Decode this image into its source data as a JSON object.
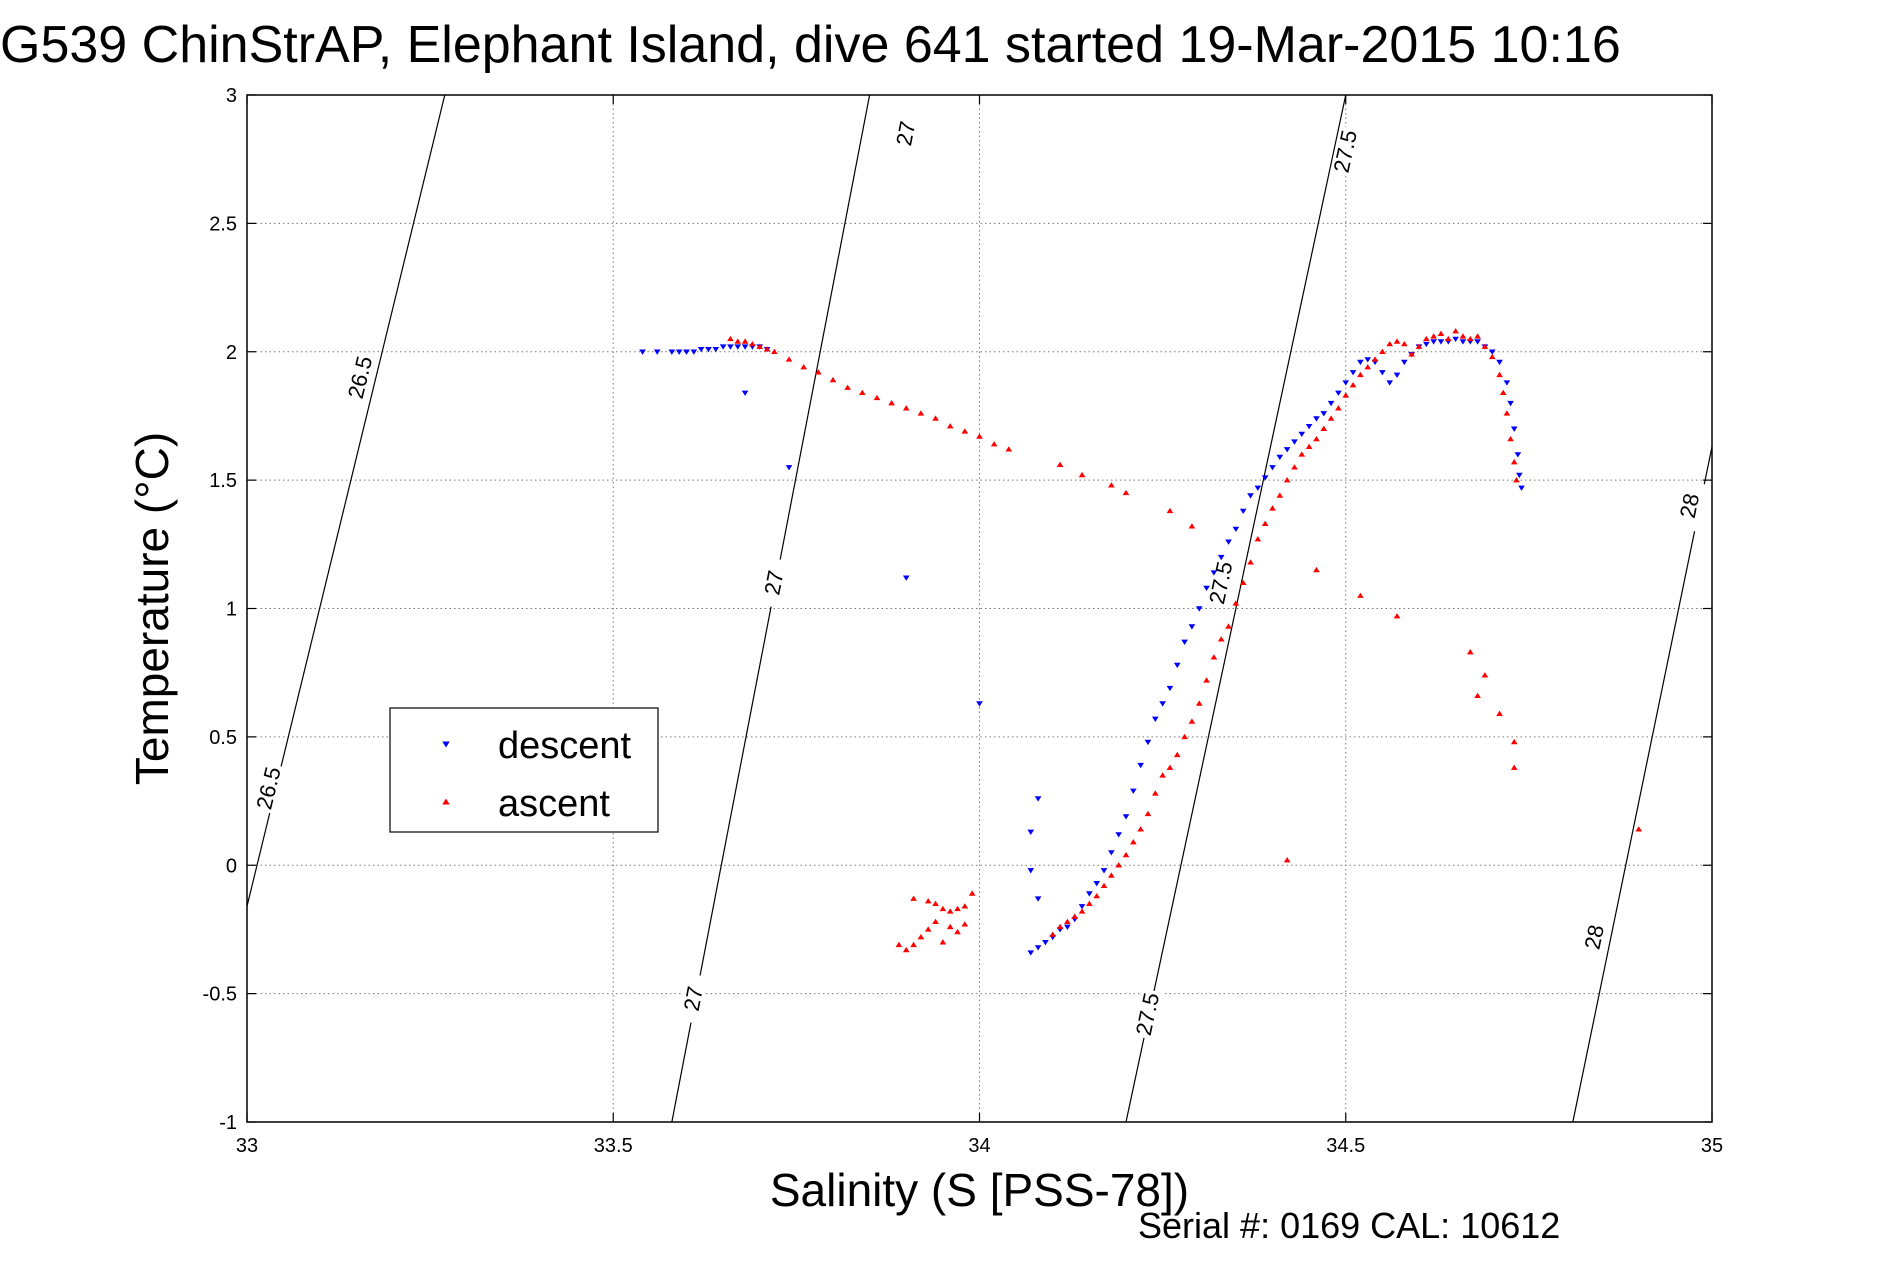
{
  "chart_data": {
    "type": "scatter",
    "title": "G539 ChinStrAP, Elephant Island, dive 641 started 19-Mar-2015 10:16",
    "xlabel": "Salinity (S [PSS-78])",
    "ylabel": "Temperature (°C)",
    "xlim": [
      33,
      35
    ],
    "ylim": [
      -1,
      3
    ],
    "xticks": [
      33,
      33.5,
      34,
      34.5,
      35
    ],
    "yticks": [
      -1,
      -0.5,
      0,
      0.5,
      1,
      1.5,
      2,
      2.5,
      3
    ],
    "xtick_labels": [
      "33",
      "33.5",
      "34",
      "34.5",
      "35"
    ],
    "ytick_labels": [
      "-1",
      "-0.5",
      "0",
      "0.5",
      "1",
      "1.5",
      "2",
      "2.5",
      "3"
    ],
    "grid": true,
    "legend_position": "center-left",
    "footer": "Serial #: 0169 CAL: 10612",
    "isopycnals": [
      {
        "label": "26.5",
        "points": [
          [
            33.0,
            -0.16
          ],
          [
            33.27,
            3.0
          ]
        ],
        "label_at": [
          [
            33.155,
            1.9
          ],
          [
            33.03,
            0.3
          ]
        ]
      },
      {
        "label": "27",
        "points": [
          [
            33.58,
            -1.0
          ],
          [
            33.85,
            3.0
          ]
        ],
        "label_at": [
          [
            33.61,
            -0.52
          ],
          [
            33.72,
            1.1
          ],
          [
            33.9,
            2.85
          ]
        ]
      },
      {
        "label": "27.5",
        "points": [
          [
            34.2,
            -1.0
          ],
          [
            34.5,
            3.0
          ]
        ],
        "label_at": [
          [
            34.23,
            -0.58
          ],
          [
            34.33,
            1.1
          ],
          [
            34.5,
            2.78
          ]
        ]
      },
      {
        "label": "28",
        "points": [
          [
            34.81,
            -1.0
          ],
          [
            35.0,
            1.63
          ]
        ],
        "label_at": [
          [
            34.84,
            -0.28
          ],
          [
            34.97,
            1.4
          ]
        ]
      }
    ],
    "series": [
      {
        "name": "descent",
        "color": "#0000ff",
        "marker": "triangle-down",
        "points": [
          [
            33.54,
            2.0
          ],
          [
            33.56,
            2.0
          ],
          [
            33.58,
            2.0
          ],
          [
            33.59,
            2.0
          ],
          [
            33.6,
            2.0
          ],
          [
            33.61,
            2.0
          ],
          [
            33.62,
            2.01
          ],
          [
            33.63,
            2.01
          ],
          [
            33.64,
            2.01
          ],
          [
            33.65,
            2.02
          ],
          [
            33.66,
            2.02
          ],
          [
            33.67,
            2.02
          ],
          [
            33.68,
            2.02
          ],
          [
            33.69,
            2.02
          ],
          [
            33.7,
            2.02
          ],
          [
            33.71,
            2.01
          ],
          [
            33.68,
            1.84
          ],
          [
            33.74,
            1.55
          ],
          [
            33.9,
            1.12
          ],
          [
            34.0,
            0.63
          ],
          [
            34.08,
            0.26
          ],
          [
            34.07,
            0.13
          ],
          [
            34.07,
            -0.02
          ],
          [
            34.08,
            -0.13
          ],
          [
            34.07,
            -0.34
          ],
          [
            34.08,
            -0.32
          ],
          [
            34.09,
            -0.3
          ],
          [
            34.1,
            -0.28
          ],
          [
            34.11,
            -0.25
          ],
          [
            34.12,
            -0.24
          ],
          [
            34.13,
            -0.21
          ],
          [
            34.14,
            -0.16
          ],
          [
            34.15,
            -0.11
          ],
          [
            34.16,
            -0.07
          ],
          [
            34.17,
            -0.02
          ],
          [
            34.18,
            0.05
          ],
          [
            34.19,
            0.12
          ],
          [
            34.2,
            0.19
          ],
          [
            34.21,
            0.29
          ],
          [
            34.22,
            0.39
          ],
          [
            34.23,
            0.48
          ],
          [
            34.24,
            0.57
          ],
          [
            34.25,
            0.63
          ],
          [
            34.26,
            0.69
          ],
          [
            34.27,
            0.78
          ],
          [
            34.28,
            0.87
          ],
          [
            34.29,
            0.93
          ],
          [
            34.3,
            1.0
          ],
          [
            34.31,
            1.08
          ],
          [
            34.32,
            1.14
          ],
          [
            34.33,
            1.2
          ],
          [
            34.34,
            1.26
          ],
          [
            34.35,
            1.31
          ],
          [
            34.36,
            1.38
          ],
          [
            34.37,
            1.44
          ],
          [
            34.38,
            1.47
          ],
          [
            34.39,
            1.51
          ],
          [
            34.4,
            1.55
          ],
          [
            34.41,
            1.59
          ],
          [
            34.42,
            1.62
          ],
          [
            34.43,
            1.65
          ],
          [
            34.44,
            1.68
          ],
          [
            34.45,
            1.71
          ],
          [
            34.46,
            1.74
          ],
          [
            34.47,
            1.76
          ],
          [
            34.48,
            1.8
          ],
          [
            34.49,
            1.84
          ],
          [
            34.5,
            1.88
          ],
          [
            34.51,
            1.92
          ],
          [
            34.52,
            1.96
          ],
          [
            34.53,
            1.97
          ],
          [
            34.54,
            1.96
          ],
          [
            34.55,
            1.92
          ],
          [
            34.56,
            1.88
          ],
          [
            34.57,
            1.91
          ],
          [
            34.58,
            1.96
          ],
          [
            34.59,
            1.99
          ],
          [
            34.6,
            2.02
          ],
          [
            34.61,
            2.03
          ],
          [
            34.62,
            2.04
          ],
          [
            34.63,
            2.04
          ],
          [
            34.64,
            2.04
          ],
          [
            34.65,
            2.05
          ],
          [
            34.66,
            2.04
          ],
          [
            34.67,
            2.04
          ],
          [
            34.68,
            2.04
          ],
          [
            34.69,
            2.02
          ],
          [
            34.7,
            2.0
          ],
          [
            34.71,
            1.96
          ],
          [
            34.72,
            1.88
          ],
          [
            34.725,
            1.8
          ],
          [
            34.73,
            1.7
          ],
          [
            34.735,
            1.6
          ],
          [
            34.737,
            1.52
          ],
          [
            34.74,
            1.47
          ]
        ]
      },
      {
        "name": "ascent",
        "color": "#ff0000",
        "marker": "triangle-up",
        "points": [
          [
            33.66,
            2.05
          ],
          [
            33.67,
            2.04
          ],
          [
            33.68,
            2.04
          ],
          [
            33.69,
            2.03
          ],
          [
            33.7,
            2.02
          ],
          [
            33.71,
            2.01
          ],
          [
            33.72,
            2.0
          ],
          [
            33.74,
            1.97
          ],
          [
            33.76,
            1.94
          ],
          [
            33.78,
            1.92
          ],
          [
            33.8,
            1.89
          ],
          [
            33.82,
            1.86
          ],
          [
            33.84,
            1.84
          ],
          [
            33.86,
            1.82
          ],
          [
            33.88,
            1.8
          ],
          [
            33.9,
            1.78
          ],
          [
            33.92,
            1.76
          ],
          [
            33.94,
            1.74
          ],
          [
            33.96,
            1.71
          ],
          [
            33.98,
            1.69
          ],
          [
            34.0,
            1.67
          ],
          [
            34.02,
            1.64
          ],
          [
            34.04,
            1.62
          ],
          [
            34.11,
            1.56
          ],
          [
            34.14,
            1.52
          ],
          [
            34.18,
            1.48
          ],
          [
            34.2,
            1.45
          ],
          [
            34.26,
            1.38
          ],
          [
            34.29,
            1.32
          ],
          [
            34.46,
            1.15
          ],
          [
            34.52,
            1.05
          ],
          [
            34.57,
            0.97
          ],
          [
            34.67,
            0.83
          ],
          [
            34.69,
            0.74
          ],
          [
            34.68,
            0.66
          ],
          [
            34.71,
            0.59
          ],
          [
            34.73,
            0.48
          ],
          [
            34.73,
            0.38
          ],
          [
            34.9,
            0.14
          ],
          [
            34.42,
            0.02
          ],
          [
            33.89,
            -0.31
          ],
          [
            33.9,
            -0.33
          ],
          [
            33.91,
            -0.31
          ],
          [
            33.92,
            -0.28
          ],
          [
            33.93,
            -0.25
          ],
          [
            33.94,
            -0.22
          ],
          [
            33.95,
            -0.3
          ],
          [
            33.96,
            -0.24
          ],
          [
            33.97,
            -0.26
          ],
          [
            33.98,
            -0.23
          ],
          [
            33.91,
            -0.13
          ],
          [
            33.93,
            -0.14
          ],
          [
            33.94,
            -0.15
          ],
          [
            33.95,
            -0.17
          ],
          [
            33.96,
            -0.18
          ],
          [
            33.97,
            -0.17
          ],
          [
            33.98,
            -0.16
          ],
          [
            33.99,
            -0.11
          ],
          [
            34.1,
            -0.27
          ],
          [
            34.11,
            -0.24
          ],
          [
            34.12,
            -0.22
          ],
          [
            34.13,
            -0.2
          ],
          [
            34.14,
            -0.18
          ],
          [
            34.15,
            -0.15
          ],
          [
            34.16,
            -0.12
          ],
          [
            34.17,
            -0.08
          ],
          [
            34.18,
            -0.04
          ],
          [
            34.19,
            0.0
          ],
          [
            34.2,
            0.04
          ],
          [
            34.21,
            0.09
          ],
          [
            34.22,
            0.14
          ],
          [
            34.23,
            0.2
          ],
          [
            34.24,
            0.28
          ],
          [
            34.25,
            0.35
          ],
          [
            34.26,
            0.38
          ],
          [
            34.27,
            0.43
          ],
          [
            34.28,
            0.5
          ],
          [
            34.29,
            0.56
          ],
          [
            34.3,
            0.63
          ],
          [
            34.31,
            0.72
          ],
          [
            34.32,
            0.81
          ],
          [
            34.33,
            0.88
          ],
          [
            34.34,
            0.93
          ],
          [
            34.35,
            1.02
          ],
          [
            34.36,
            1.1
          ],
          [
            34.37,
            1.18
          ],
          [
            34.38,
            1.27
          ],
          [
            34.39,
            1.33
          ],
          [
            34.4,
            1.39
          ],
          [
            34.41,
            1.44
          ],
          [
            34.42,
            1.5
          ],
          [
            34.43,
            1.55
          ],
          [
            34.44,
            1.6
          ],
          [
            34.45,
            1.63
          ],
          [
            34.46,
            1.66
          ],
          [
            34.47,
            1.7
          ],
          [
            34.48,
            1.74
          ],
          [
            34.49,
            1.78
          ],
          [
            34.5,
            1.83
          ],
          [
            34.51,
            1.87
          ],
          [
            34.52,
            1.91
          ],
          [
            34.53,
            1.94
          ],
          [
            34.54,
            1.97
          ],
          [
            34.55,
            2.0
          ],
          [
            34.56,
            2.03
          ],
          [
            34.57,
            2.04
          ],
          [
            34.58,
            2.03
          ],
          [
            34.59,
            1.99
          ],
          [
            34.6,
            2.02
          ],
          [
            34.61,
            2.05
          ],
          [
            34.62,
            2.06
          ],
          [
            34.63,
            2.07
          ],
          [
            34.64,
            2.05
          ],
          [
            34.65,
            2.08
          ],
          [
            34.66,
            2.06
          ],
          [
            34.67,
            2.05
          ],
          [
            34.68,
            2.06
          ],
          [
            34.69,
            2.02
          ],
          [
            34.7,
            1.98
          ],
          [
            34.71,
            1.91
          ],
          [
            34.715,
            1.84
          ],
          [
            34.72,
            1.76
          ],
          [
            34.725,
            1.66
          ],
          [
            34.73,
            1.57
          ],
          [
            34.733,
            1.5
          ]
        ]
      }
    ]
  }
}
